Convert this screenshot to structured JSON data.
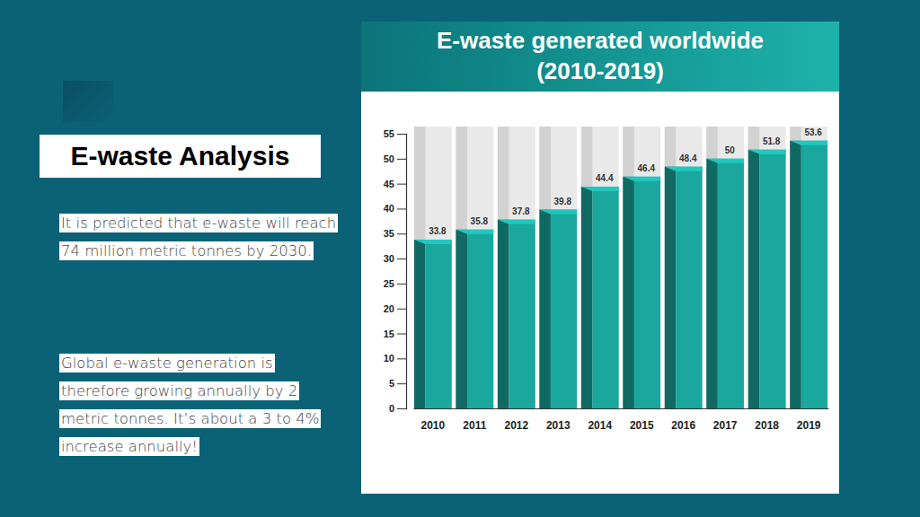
{
  "slide": {
    "heading": "E-waste Analysis",
    "paragraphs": [
      "It is predicted that e-waste will reach 74 million metric tonnes by 2030.",
      "Global e-waste generation is therefore growing annually by 2 metric tonnes. It’s about a 3 to 4% increase annually!"
    ]
  },
  "chart_data": {
    "type": "bar",
    "title": "E-waste generated worldwide",
    "subtitle": "(2010-2019)",
    "categories": [
      "2010",
      "2011",
      "2012",
      "2013",
      "2014",
      "2015",
      "2016",
      "2017",
      "2018",
      "2019"
    ],
    "values": [
      33.8,
      35.8,
      37.8,
      39.8,
      44.4,
      46.4,
      48.4,
      50,
      51.8,
      53.6
    ],
    "color": "#1aa79e",
    "ylim": [
      0,
      55
    ],
    "yticks": [
      0,
      5,
      10,
      15,
      20,
      25,
      30,
      35,
      40,
      45,
      50,
      55
    ],
    "grid": false,
    "data_labels": true
  }
}
